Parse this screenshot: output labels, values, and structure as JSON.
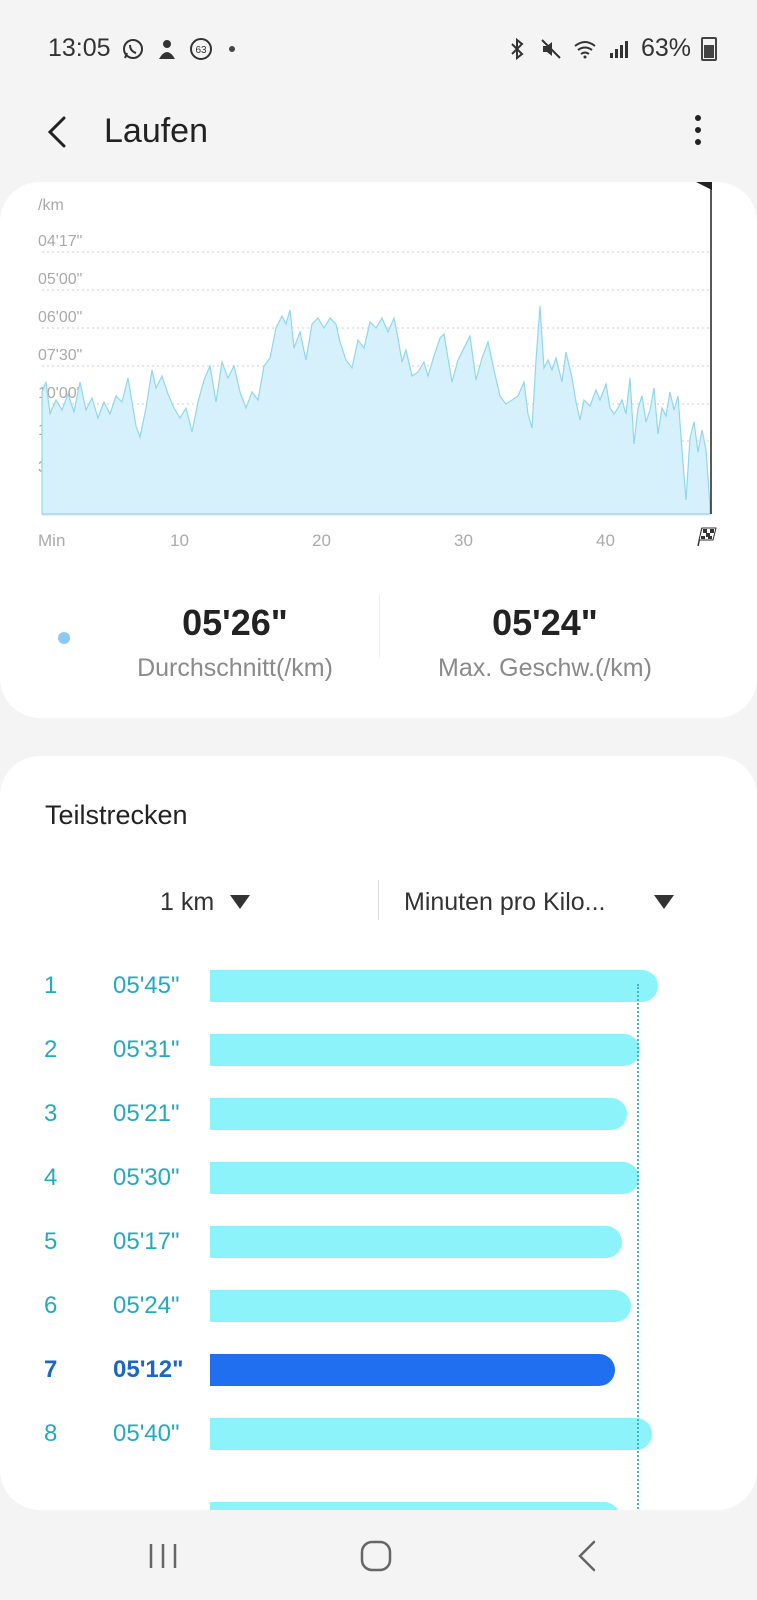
{
  "status": {
    "time": "13:05",
    "notification_badge": "63",
    "battery": "63%"
  },
  "header": {
    "title": "Laufen"
  },
  "pace_chart": {
    "unit": "/km",
    "y_ticks": [
      "04'17\"",
      "05'00\"",
      "06'00\"",
      "07'30\"",
      "10'00\"",
      "15'00\"",
      "30'00\""
    ],
    "x_ticks": [
      "Min",
      "10",
      "20",
      "30",
      "40"
    ],
    "finish_icon": "checkered-flag-icon",
    "fill_color": "#d6f1fb",
    "line_color": "#8fd7ef"
  },
  "summary": {
    "average_value": "05'26\"",
    "average_label": "Durchschnitt(/km)",
    "max_value": "05'24\"",
    "max_label": "Max. Geschw.(/km)"
  },
  "splits": {
    "title": "Teilstrecken",
    "distance_select": "1 km",
    "metric_select": "Minuten pro Kilo...",
    "rows": [
      {
        "index": "1",
        "time": "05'45\"",
        "seconds": 345
      },
      {
        "index": "2",
        "time": "05'31\"",
        "seconds": 331
      },
      {
        "index": "3",
        "time": "05'21\"",
        "seconds": 321
      },
      {
        "index": "4",
        "time": "05'30\"",
        "seconds": 330
      },
      {
        "index": "5",
        "time": "05'17\"",
        "seconds": 317
      },
      {
        "index": "6",
        "time": "05'24\"",
        "seconds": 324
      },
      {
        "index": "7",
        "time": "05'12\"",
        "seconds": 312,
        "highlighted": true
      },
      {
        "index": "8",
        "time": "05'40\"",
        "seconds": 340
      }
    ],
    "bar_color": "#8df3fb",
    "highlight_color": "#1f6ff0"
  }
}
